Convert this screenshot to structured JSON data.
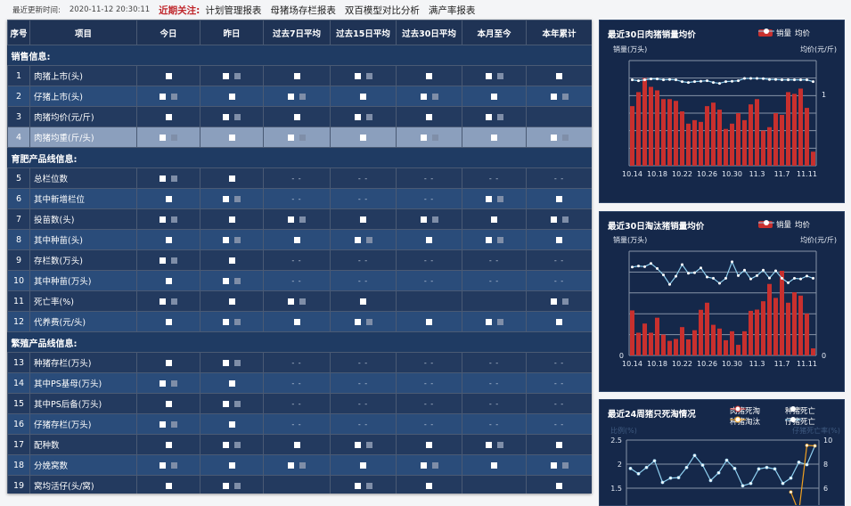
{
  "topbar": {
    "update_label": "最近更新时间:",
    "update_time": "2020-11-12 20:30:11",
    "focus_label": "近期关注:",
    "links": [
      "计划管理报表",
      "母猪场存栏报表",
      "双百模型对比分析",
      "满产率报表"
    ]
  },
  "table": {
    "columns": [
      "序号",
      "项目",
      "今日",
      "昨日",
      "过去7日平均",
      "过去15日平均",
      "过去30日平均",
      "本月至今",
      "本年累计"
    ],
    "sections": [
      {
        "title": "销售信息:",
        "rows": [
          {
            "no": "1",
            "name": "肉猪上市(头)",
            "cells": [
              null,
              null,
              null,
              null,
              null,
              null,
              null
            ]
          },
          {
            "no": "2",
            "name": "仔猪上市(头)",
            "cells": [
              null,
              null,
              null,
              null,
              null,
              null,
              null
            ]
          },
          {
            "no": "3",
            "name": "肉猪均价(元/斤)",
            "cells": [
              null,
              null,
              null,
              null,
              null,
              null,
              ""
            ]
          },
          {
            "no": "4",
            "name": "肉猪均重(斤/头)",
            "cells": [
              null,
              null,
              null,
              null,
              null,
              null,
              null
            ],
            "highlight": true
          }
        ]
      },
      {
        "title": "育肥产品线信息:",
        "rows": [
          {
            "no": "5",
            "name": "总栏位数",
            "cells": [
              null,
              null,
              "- -",
              "- -",
              "- -",
              "- -",
              "- -"
            ]
          },
          {
            "no": "6",
            "name": "其中新增栏位",
            "cells": [
              null,
              null,
              "- -",
              "- -",
              "- -",
              null,
              null
            ]
          },
          {
            "no": "7",
            "name": "投苗数(头)",
            "cells": [
              null,
              null,
              null,
              null,
              null,
              null,
              null
            ]
          },
          {
            "no": "8",
            "name": "其中种苗(头)",
            "cells": [
              null,
              null,
              null,
              null,
              null,
              null,
              null
            ]
          },
          {
            "no": "9",
            "name": "存栏数(万头)",
            "cells": [
              null,
              null,
              "- -",
              "- -",
              "- -",
              "- -",
              "- -"
            ]
          },
          {
            "no": "10",
            "name": "其中种苗(万头)",
            "cells": [
              null,
              null,
              "- -",
              "- -",
              "- -",
              "- -",
              "- -"
            ]
          },
          {
            "no": "11",
            "name": "死亡率(%)",
            "cells": [
              null,
              null,
              null,
              null,
              "",
              "",
              null
            ]
          },
          {
            "no": "12",
            "name": "代养费(元/头)",
            "cells": [
              null,
              null,
              null,
              null,
              null,
              null,
              null
            ]
          }
        ]
      },
      {
        "title": "繁殖产品线信息:",
        "rows": [
          {
            "no": "13",
            "name": "种猪存栏(万头)",
            "cells": [
              null,
              null,
              "- -",
              "- -",
              "- -",
              "- -",
              "- -"
            ]
          },
          {
            "no": "14",
            "name": "其中PS基母(万头)",
            "cells": [
              null,
              null,
              "- -",
              "- -",
              "- -",
              "- -",
              "- -"
            ]
          },
          {
            "no": "15",
            "name": "其中PS后备(万头)",
            "cells": [
              null,
              null,
              "- -",
              "- -",
              "- -",
              "- -",
              "- -"
            ]
          },
          {
            "no": "16",
            "name": "仔猪存栏(万头)",
            "cells": [
              null,
              null,
              "- -",
              "- -",
              "- -",
              "- -",
              "- -"
            ]
          },
          {
            "no": "17",
            "name": "配种数",
            "cells": [
              null,
              null,
              null,
              null,
              null,
              null,
              null
            ]
          },
          {
            "no": "18",
            "name": "分娩窝数",
            "cells": [
              null,
              null,
              null,
              null,
              null,
              null,
              null
            ]
          },
          {
            "no": "19",
            "name": "窝均活仔(头/窝)",
            "cells": [
              null,
              null,
              "",
              null,
              null,
              "",
              null
            ]
          }
        ]
      }
    ]
  },
  "colors": {
    "bar": "#c8302e",
    "line": "#8fd0f0",
    "orange": "#f0a020",
    "panel": "#15284a",
    "header": "#1f3355"
  },
  "chart_data": [
    {
      "type": "bar",
      "title": "最近30日肉猪销量均价",
      "ylabel": "销量(万头)",
      "y2label": "均价(元/斤)",
      "y2ticks": [
        "1"
      ],
      "legend": [
        "销量",
        "均价"
      ],
      "legend_placement": "top-right",
      "ylim": [
        0,
        6
      ],
      "grid": true,
      "xticks": [
        "10.14",
        "10.18",
        "10.22",
        "10.26",
        "10.30",
        "11.3",
        "11.7",
        "11.11"
      ],
      "series": [
        {
          "name": "销量",
          "type": "bar",
          "values": [
            3.4,
            4.2,
            5.0,
            4.5,
            4.3,
            3.8,
            3.8,
            3.7,
            3.1,
            2.4,
            2.6,
            2.5,
            3.4,
            3.6,
            3.2,
            2.1,
            2.4,
            3.0,
            2.6,
            3.5,
            3.8,
            2.0,
            2.2,
            3.0,
            2.9,
            4.2,
            4.1,
            4.4,
            3.3,
            0.8
          ]
        },
        {
          "name": "均价",
          "type": "line",
          "values": [
            4.9,
            4.85,
            4.9,
            4.95,
            4.95,
            4.9,
            4.92,
            4.9,
            4.8,
            4.75,
            4.8,
            4.82,
            4.85,
            4.75,
            4.7,
            4.8,
            4.82,
            4.85,
            4.98,
            4.98,
            4.98,
            4.97,
            4.92,
            4.92,
            4.9,
            4.9,
            4.9,
            4.9,
            4.9,
            4.8
          ]
        }
      ]
    },
    {
      "type": "bar",
      "title": "最近30日淘汰猪销量均价",
      "ylabel": "销量(万头)",
      "y2label": "均价(元/斤)",
      "yticks": [
        "0"
      ],
      "y2ticks": [
        "0"
      ],
      "legend": [
        "销量",
        "均价"
      ],
      "legend_placement": "top-right",
      "ylim": [
        0,
        5
      ],
      "grid": true,
      "xticks": [
        "10.14",
        "10.18",
        "10.22",
        "10.26",
        "10.30",
        "11.3",
        "11.7",
        "11.11"
      ],
      "series": [
        {
          "name": "销量",
          "type": "bar",
          "values": [
            2.16,
            1.09,
            1.53,
            1.09,
            1.81,
            1.0,
            0.7,
            0.79,
            1.36,
            0.77,
            1.21,
            2.19,
            2.53,
            1.47,
            1.29,
            0.73,
            1.16,
            0.51,
            1.16,
            2.14,
            2.2,
            2.6,
            3.43,
            2.76,
            4.06,
            2.53,
            3.03,
            2.87,
            2.01,
            0.34
          ]
        },
        {
          "name": "均价",
          "type": "line",
          "values": [
            4.24,
            4.29,
            4.26,
            4.41,
            4.17,
            3.86,
            3.41,
            3.8,
            4.36,
            3.94,
            3.97,
            4.2,
            3.76,
            3.7,
            3.46,
            3.7,
            4.49,
            3.83,
            4.09,
            3.67,
            3.83,
            4.09,
            3.71,
            4.06,
            3.7,
            3.49,
            3.7,
            3.67,
            3.81,
            3.7
          ]
        }
      ]
    },
    {
      "type": "line",
      "title": "最近24周猪只死淘情况",
      "ylabel": "比例(%)",
      "y2label": "仔猪死亡率(%)",
      "legend": [
        "肉猪死淘",
        "种猪死亡",
        "种猪淘汰",
        "仔猪死亡"
      ],
      "legend_placement": "top-right",
      "yticks": [
        "2.5",
        "2",
        "1.5"
      ],
      "y2ticks": [
        "10",
        "8",
        "6"
      ],
      "ylim": [
        1.5,
        2.5
      ],
      "y2lim": [
        6,
        10
      ],
      "grid": true,
      "series": [
        {
          "name": "仔猪死亡",
          "color": "#8fd0f0",
          "values": [
            1.91,
            1.8,
            1.93,
            2.07,
            1.62,
            1.71,
            1.72,
            1.93,
            2.18,
            1.98,
            1.66,
            1.82,
            2.08,
            1.91,
            1.55,
            1.6,
            1.9,
            1.93,
            1.9,
            1.6,
            1.71,
            2.04,
            1.99,
            2.38
          ]
        },
        {
          "name": "种猪淘汰",
          "color": "#f0a020",
          "values": [
            null,
            null,
            null,
            null,
            null,
            null,
            null,
            null,
            null,
            null,
            null,
            null,
            null,
            null,
            null,
            null,
            null,
            null,
            null,
            null,
            1.42,
            1.0,
            2.39,
            2.38
          ]
        }
      ]
    }
  ]
}
